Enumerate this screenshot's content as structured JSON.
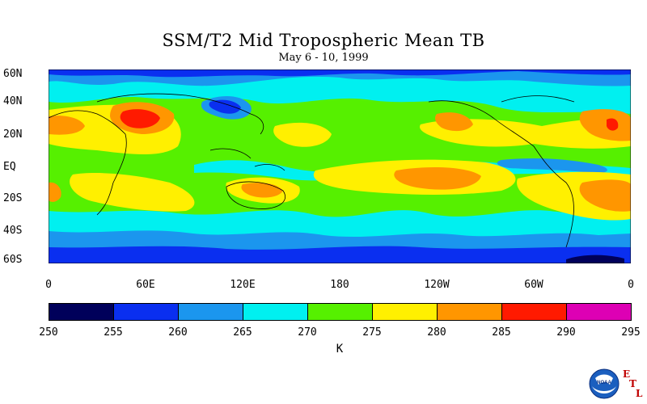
{
  "title": "SSM/T2 Mid Tropospheric Mean TB",
  "subtitle": "May 6 - 10, 1999",
  "lat_labels": [
    "60N",
    "40N",
    "20N",
    "EQ",
    "20S",
    "40S",
    "60S"
  ],
  "lon_labels": [
    "0",
    "60E",
    "120E",
    "180",
    "120W",
    "60W",
    "0"
  ],
  "colorbar": {
    "ticks": [
      "250",
      "255",
      "260",
      "265",
      "270",
      "275",
      "280",
      "285",
      "290",
      "295"
    ],
    "colors": [
      "#00005a",
      "#0a2ff0",
      "#1b96ee",
      "#00f0f0",
      "#56f000",
      "#fff000",
      "#ff9600",
      "#ff1a00",
      "#dd00b4"
    ],
    "unit": "K"
  },
  "logo": {
    "name": "noaa-logo",
    "text": "NOAA"
  },
  "etl_letters": [
    "E",
    "T",
    "L"
  ]
}
